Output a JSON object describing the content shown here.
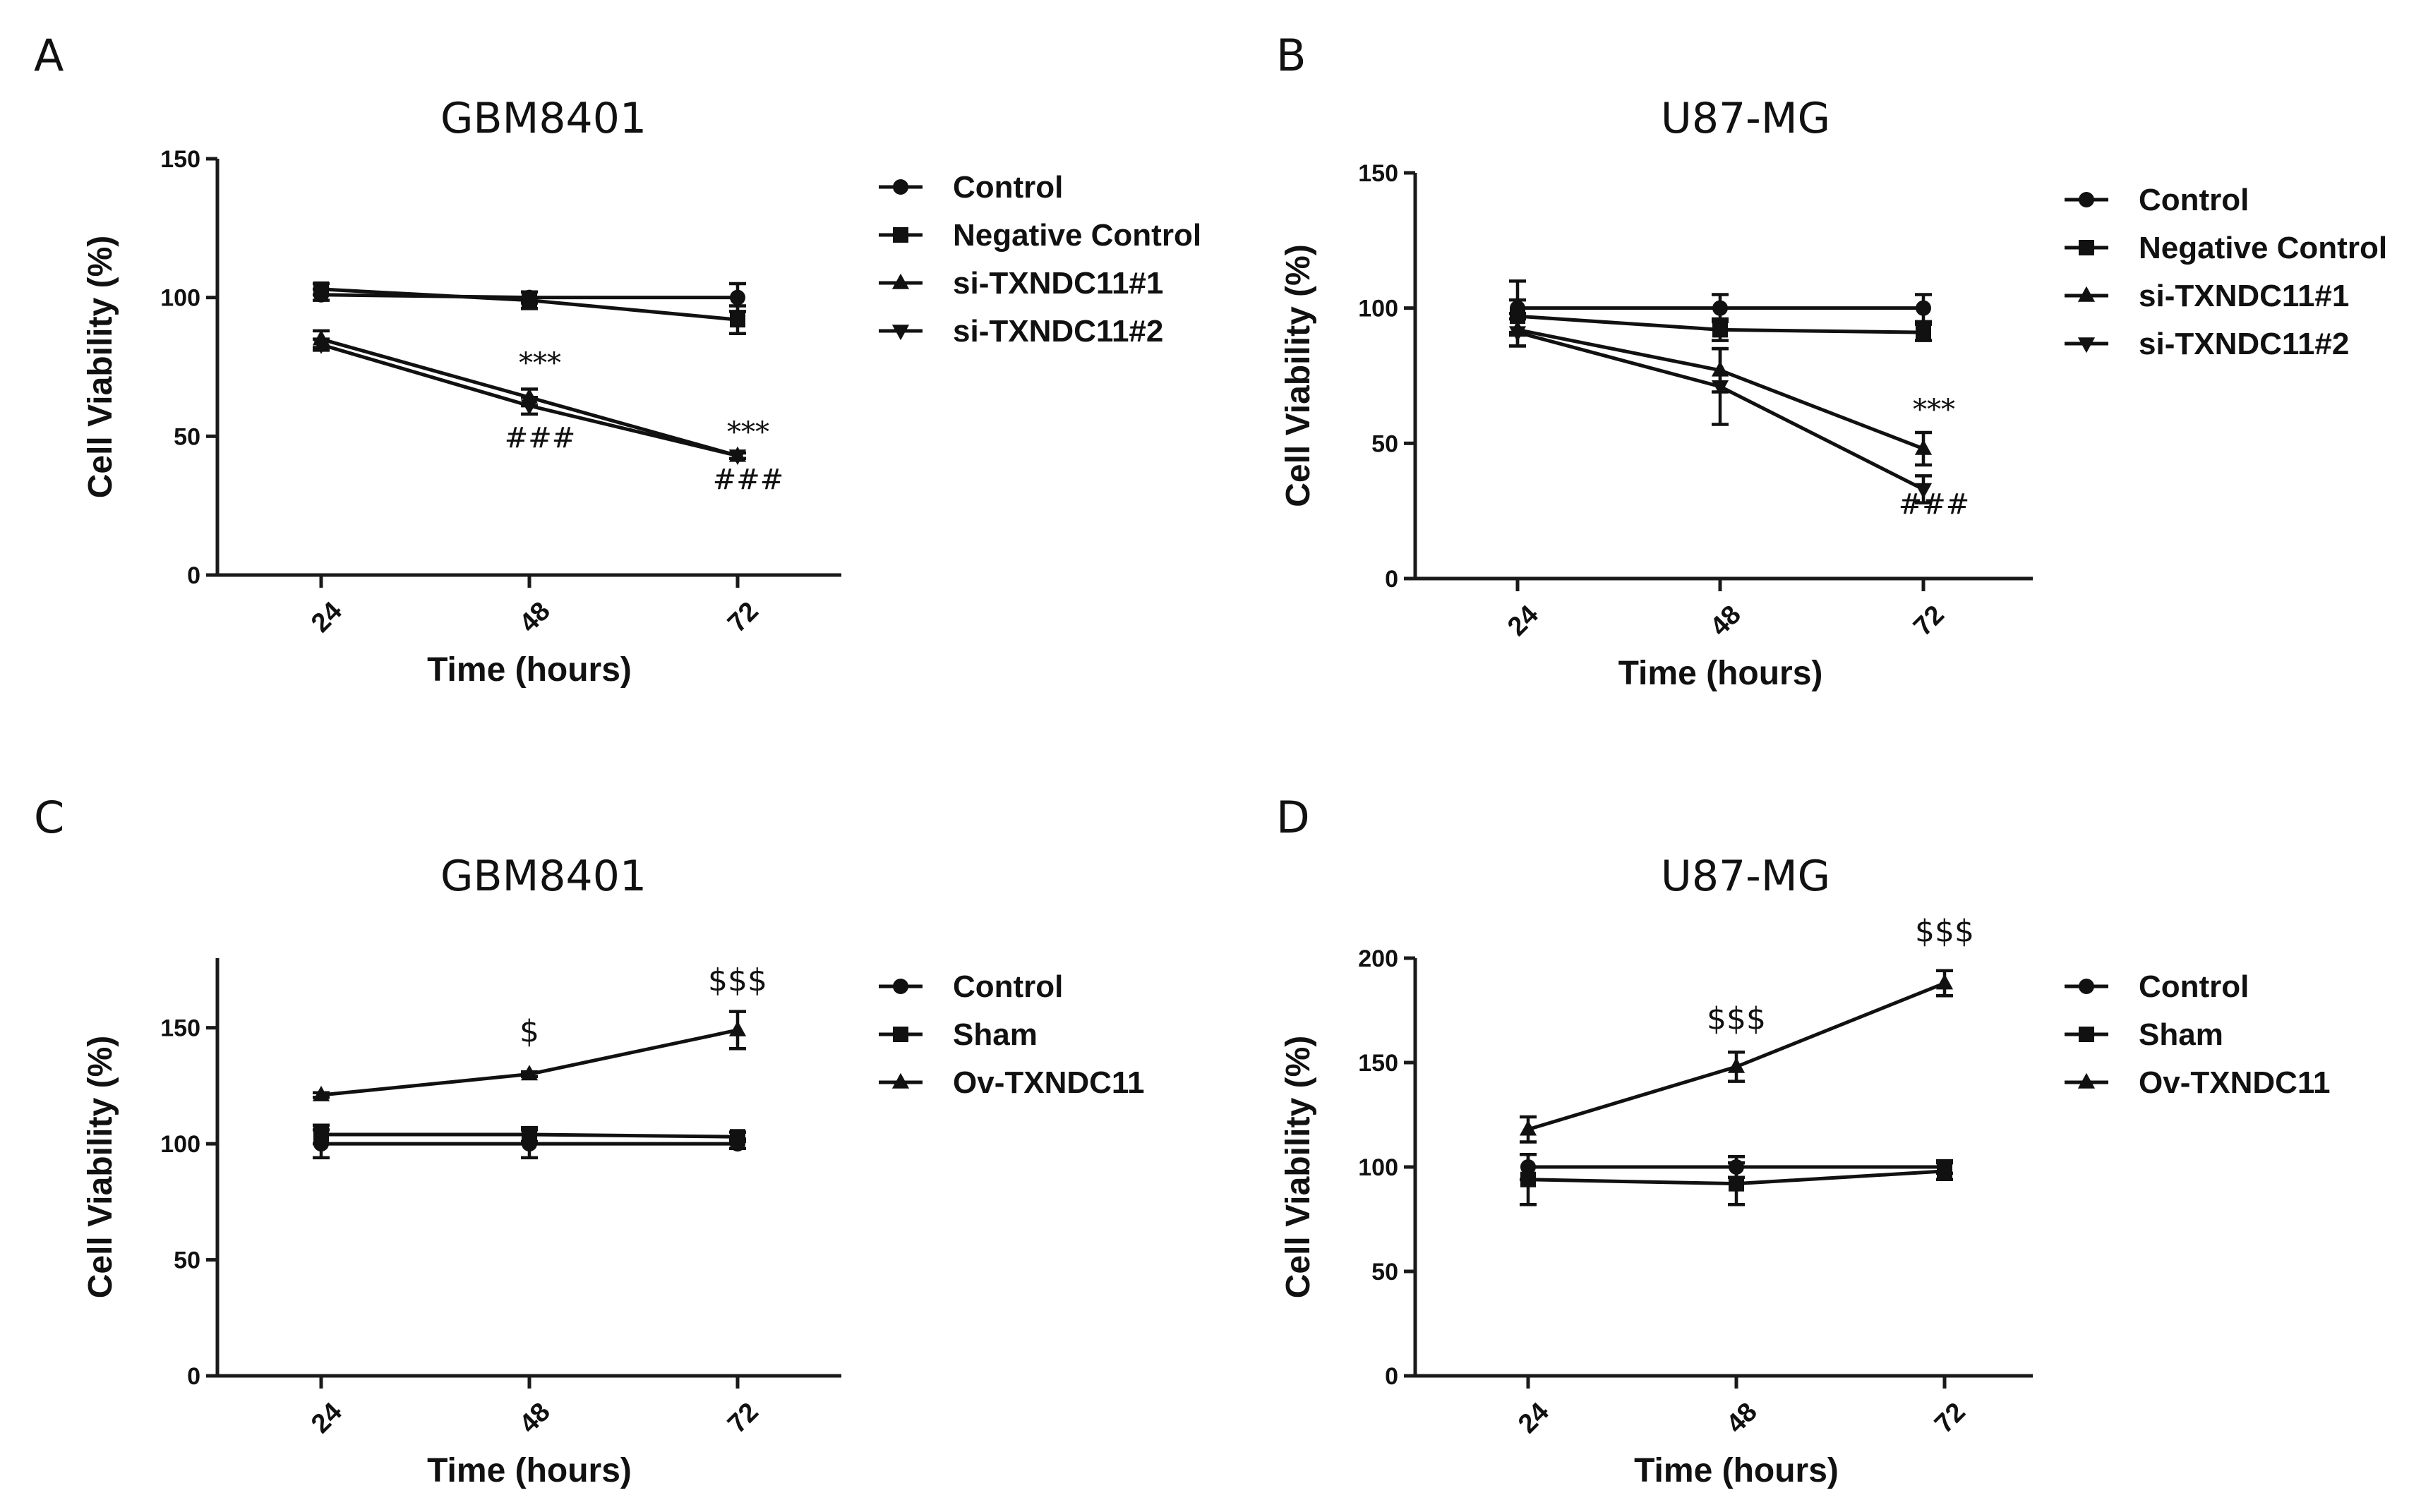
{
  "chart_data": [
    {
      "panel": "A",
      "type": "line",
      "title": "GBM8401",
      "xlabel": "Time (hours)",
      "ylabel": "Cell Viability (%)",
      "categories": [
        "24",
        "48",
        "72"
      ],
      "ylim": [
        0,
        150
      ],
      "yticks": [
        "0",
        "50",
        "100",
        "150"
      ],
      "legend_position": "right",
      "series": [
        {
          "name": "Control",
          "marker": "circle",
          "values": [
            101,
            100,
            100
          ],
          "errors": [
            2,
            2,
            5
          ]
        },
        {
          "name": "Negative Control",
          "marker": "square",
          "values": [
            103,
            99,
            92
          ],
          "errors": [
            2,
            3,
            5
          ]
        },
        {
          "name": "si-TXNDC11#1",
          "marker": "triangle-up",
          "values": [
            85,
            64,
            43
          ],
          "errors": [
            3,
            3,
            1
          ]
        },
        {
          "name": "si-TXNDC11#2",
          "marker": "triangle-down",
          "values": [
            83,
            61,
            43
          ],
          "errors": [
            2,
            3,
            1
          ]
        }
      ],
      "annotations": [
        {
          "text": "***",
          "category": "48",
          "y": 73
        },
        {
          "text": "###",
          "category": "48",
          "y": 46
        },
        {
          "text": "***",
          "category": "72",
          "y": 48
        },
        {
          "text": "###",
          "category": "72",
          "y": 31
        }
      ]
    },
    {
      "panel": "B",
      "type": "line",
      "title": "U87-MG",
      "xlabel": "Time (hours)",
      "ylabel": "Cell Viability (%)",
      "categories": [
        "24",
        "48",
        "72"
      ],
      "ylim": [
        0,
        150
      ],
      "yticks": [
        "0",
        "50",
        "100",
        "150"
      ],
      "legend_position": "right",
      "series": [
        {
          "name": "Control",
          "marker": "circle",
          "values": [
            100,
            100,
            100
          ],
          "errors": [
            10,
            5,
            5
          ]
        },
        {
          "name": "Negative Control",
          "marker": "square",
          "values": [
            97,
            92,
            91
          ],
          "errors": [
            6,
            4,
            3
          ]
        },
        {
          "name": "si-TXNDC11#1",
          "marker": "triangle-up",
          "values": [
            92,
            77,
            48
          ],
          "errors": [
            6,
            8,
            6
          ]
        },
        {
          "name": "si-TXNDC11#2",
          "marker": "triangle-down",
          "values": [
            91,
            71,
            33
          ],
          "errors": [
            5,
            14,
            5
          ]
        }
      ],
      "annotations": [
        {
          "text": "***",
          "category": "72",
          "y": 59
        },
        {
          "text": "###",
          "category": "72",
          "y": 24
        }
      ]
    },
    {
      "panel": "C",
      "type": "line",
      "title": "GBM8401",
      "xlabel": "Time (hours)",
      "ylabel": "Cell Viability (%)",
      "categories": [
        "24",
        "48",
        "72"
      ],
      "ylim": [
        0,
        180
      ],
      "yticks": [
        "0",
        "50",
        "100",
        "150"
      ],
      "legend_position": "right",
      "series": [
        {
          "name": "Control",
          "marker": "circle",
          "values": [
            100,
            100,
            100
          ],
          "errors": [
            6,
            6,
            2
          ]
        },
        {
          "name": "Sham",
          "marker": "square",
          "values": [
            104,
            104,
            103
          ],
          "errors": [
            4,
            3,
            2
          ]
        },
        {
          "name": "Ov-TXNDC11",
          "marker": "triangle-up",
          "values": [
            121,
            130,
            149
          ],
          "errors": [
            1,
            1,
            8
          ]
        }
      ],
      "annotations": [
        {
          "text": "$",
          "category": "48",
          "y": 144
        },
        {
          "text": "$$$",
          "category": "72",
          "y": 166
        }
      ]
    },
    {
      "panel": "D",
      "type": "line",
      "title": "U87-MG",
      "xlabel": "Time (hours)",
      "ylabel": "Cell Viability (%)",
      "categories": [
        "24",
        "48",
        "72"
      ],
      "ylim": [
        0,
        200
      ],
      "yticks": [
        "0",
        "50",
        "100",
        "150",
        "200"
      ],
      "legend_position": "right",
      "series": [
        {
          "name": "Control",
          "marker": "circle",
          "values": [
            100,
            100,
            100
          ],
          "errors": [
            6,
            5,
            3
          ]
        },
        {
          "name": "Sham",
          "marker": "square",
          "values": [
            94,
            92,
            98
          ],
          "errors": [
            12,
            10,
            4
          ]
        },
        {
          "name": "Ov-TXNDC11",
          "marker": "triangle-up",
          "values": [
            118,
            148,
            188
          ],
          "errors": [
            6,
            7,
            6
          ]
        }
      ],
      "annotations": [
        {
          "text": "$$$",
          "category": "48",
          "y": 166
        },
        {
          "text": "$$$",
          "category": "72",
          "y": 208
        }
      ]
    }
  ]
}
